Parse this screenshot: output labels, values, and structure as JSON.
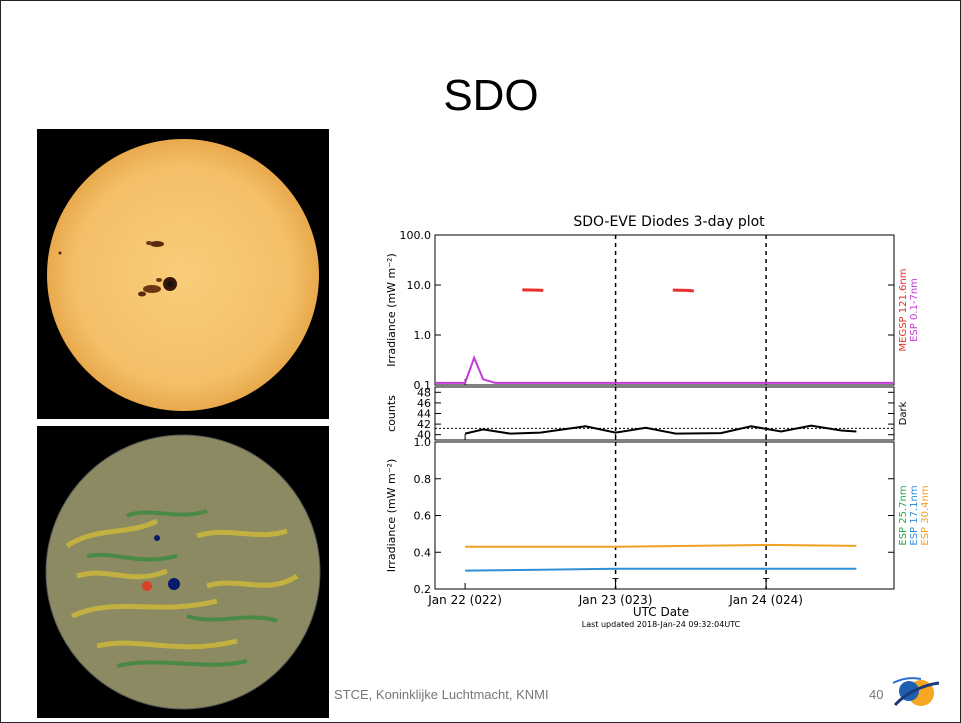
{
  "slide": {
    "title": "SDO",
    "footer": "STCE, Koninklijke Luchtmacht, KNMI",
    "page_number": "40"
  },
  "images": {
    "top": "sun-continuum-image",
    "bottom": "sun-magnetogram-image"
  },
  "colors": {
    "sun_disk": "#f5c46e",
    "magnetogram_disk": "#8c8a62",
    "megsp": "#e8302a",
    "esp_01_7": "#c43ad6",
    "dark": "#000000",
    "esp_171": "#2f8fd6",
    "esp_257": "#2aa84a",
    "esp_304": "#f0a020"
  },
  "chart_data": {
    "type": "line",
    "title": "SDO-EVE Diodes 3-day plot",
    "xlabel": "UTC Date",
    "x_ticks": [
      "Jan 22 (022)",
      "Jan 23 (023)",
      "Jan 24 (024)"
    ],
    "x_range_days": [
      21.8,
      24.85
    ],
    "footnote": "Last updated 2018-Jan-24 09:32:04UTC",
    "panels": [
      {
        "name": "top",
        "ylabel": "Irradiance (mW m⁻²)",
        "scale": "log",
        "ylim": [
          0.1,
          100
        ],
        "y_ticks": [
          "0.1",
          "1.0",
          "10.0",
          "100.0"
        ],
        "series": [
          {
            "name": "MEGSP 121.6nm",
            "x": [
              22.38,
              22.48,
              22.52
            ],
            "y": [
              8.0,
              7.9,
              7.8
            ]
          },
          {
            "name": "ESP 0.1-7nm",
            "x": [
              21.8,
              22.0,
              22.06,
              22.12,
              22.2,
              22.5,
              23.0,
              23.5,
              24.0,
              24.5,
              24.85
            ],
            "y": [
              0.11,
              0.11,
              0.35,
              0.13,
              0.11,
              0.11,
              0.11,
              0.11,
              0.11,
              0.11,
              0.11
            ]
          }
        ],
        "extra_series": {
          "x": [
            23.38,
            23.48,
            23.52
          ],
          "y": [
            7.9,
            7.8,
            7.6
          ]
        },
        "right_labels": [
          "MEGSP 121.6nm",
          "ESP 0.1-7nm"
        ]
      },
      {
        "name": "middle",
        "ylabel": "counts",
        "scale": "linear",
        "ylim": [
          39,
          49
        ],
        "y_ticks": [
          "40",
          "42",
          "44",
          "46",
          "48"
        ],
        "series": [
          {
            "name": "Dark",
            "x": [
              22.0,
              22.12,
              22.3,
              22.5,
              22.8,
              23.0,
              23.2,
              23.4,
              23.7,
              23.9,
              24.1,
              24.3,
              24.5,
              24.6
            ],
            "y": [
              40.2,
              41.0,
              40.2,
              40.4,
              41.6,
              40.4,
              41.3,
              40.2,
              40.3,
              41.6,
              40.6,
              41.7,
              40.8,
              40.6
            ]
          }
        ],
        "reference_line": 41.2,
        "right_labels": [
          "Dark"
        ]
      },
      {
        "name": "bottom",
        "ylabel": "Irradiance (mW m⁻²)",
        "scale": "linear",
        "ylim": [
          0.2,
          1.0
        ],
        "y_ticks": [
          "0.2",
          "0.4",
          "0.6",
          "0.8",
          "1.0"
        ],
        "series": [
          {
            "name": "ESP 30.4nm",
            "x": [
              22.0,
              22.5,
              23.0,
              23.5,
              24.0,
              24.6
            ],
            "y": [
              0.43,
              0.43,
              0.43,
              0.435,
              0.44,
              0.435
            ]
          },
          {
            "name": "ESP 17.1nm",
            "x": [
              22.0,
              22.5,
              23.0,
              23.5,
              24.0,
              24.6
            ],
            "y": [
              0.3,
              0.305,
              0.31,
              0.31,
              0.31,
              0.31
            ]
          }
        ],
        "markers": [
          "T",
          "T"
        ],
        "right_labels": [
          "ESP 25.7nm",
          "ESP 17.1nm",
          "ESP 30.4nm"
        ]
      }
    ]
  }
}
